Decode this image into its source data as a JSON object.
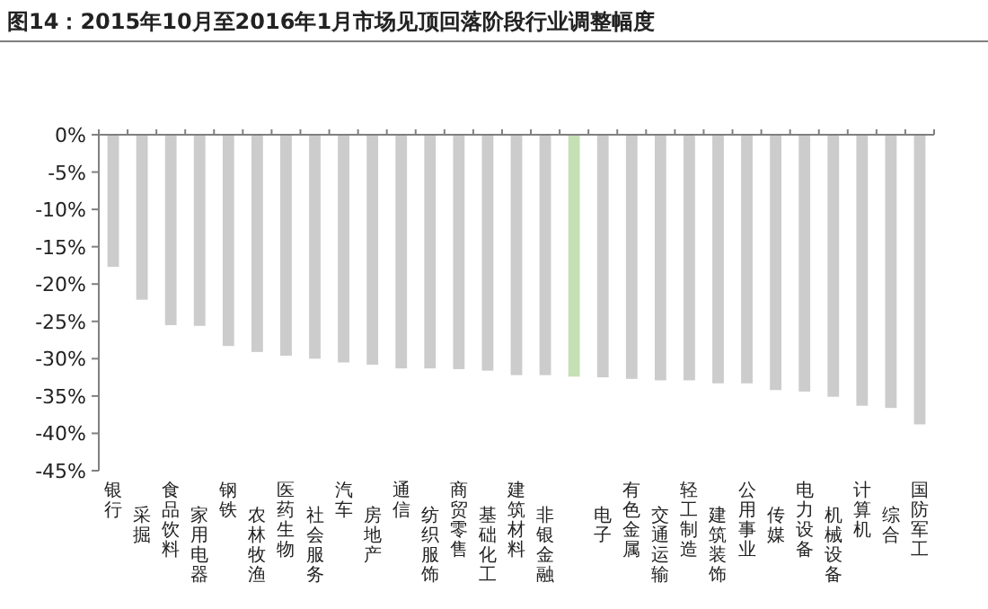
{
  "chart_data": {
    "type": "bar",
    "title": "图14：2015年10月至2016年1月市场见顶回落阶段行业调整幅度",
    "categories": [
      "银行",
      "采掘",
      "食品饮料",
      "家用电器",
      "钢铁",
      "农林牧渔",
      "医药生物",
      "社会服务",
      "汽车",
      "房地产",
      "通信",
      "纺织服饰",
      "商贸零售",
      "基础化工",
      "建筑材料",
      "非银金融",
      null,
      "电子",
      "有色金属",
      "交通运输",
      "轻工制造",
      "建筑装饰",
      "公用事业",
      "传媒",
      "电力设备",
      "机械设备",
      "计算机",
      "综合",
      "国防军工"
    ],
    "values": [
      -17.7,
      -22.1,
      -25.5,
      -25.6,
      -28.3,
      -29.1,
      -29.6,
      -30.0,
      -30.5,
      -30.8,
      -31.3,
      -31.3,
      -31.4,
      -31.6,
      -32.2,
      -32.2,
      -32.4,
      -32.5,
      -32.7,
      -32.9,
      -32.9,
      -33.3,
      -33.3,
      -34.2,
      -34.4,
      -35.1,
      -36.3,
      -36.6,
      -38.8
    ],
    "colors": [
      "#cccccc",
      "#cccccc",
      "#cccccc",
      "#cccccc",
      "#cccccc",
      "#cccccc",
      "#cccccc",
      "#cccccc",
      "#cccccc",
      "#cccccc",
      "#cccccc",
      "#cccccc",
      "#cccccc",
      "#cccccc",
      "#cccccc",
      "#cccccc",
      "#c5e0b4",
      "#cccccc",
      "#cccccc",
      "#cccccc",
      "#cccccc",
      "#cccccc",
      "#cccccc",
      "#cccccc",
      "#cccccc",
      "#cccccc",
      "#cccccc",
      "#cccccc",
      "#cccccc"
    ],
    "ylim": [
      -45,
      0
    ],
    "yticks": [
      {
        "value": 0,
        "label": "0%"
      },
      {
        "value": -5,
        "label": "-5%"
      },
      {
        "value": -10,
        "label": "-10%"
      },
      {
        "value": -15,
        "label": "-15%"
      },
      {
        "value": -20,
        "label": "-20%"
      },
      {
        "value": -25,
        "label": "-25%"
      },
      {
        "value": -30,
        "label": "-30%"
      },
      {
        "value": -35,
        "label": "-35%"
      },
      {
        "value": -40,
        "label": "-40%"
      },
      {
        "value": -45,
        "label": "-45%"
      }
    ]
  }
}
